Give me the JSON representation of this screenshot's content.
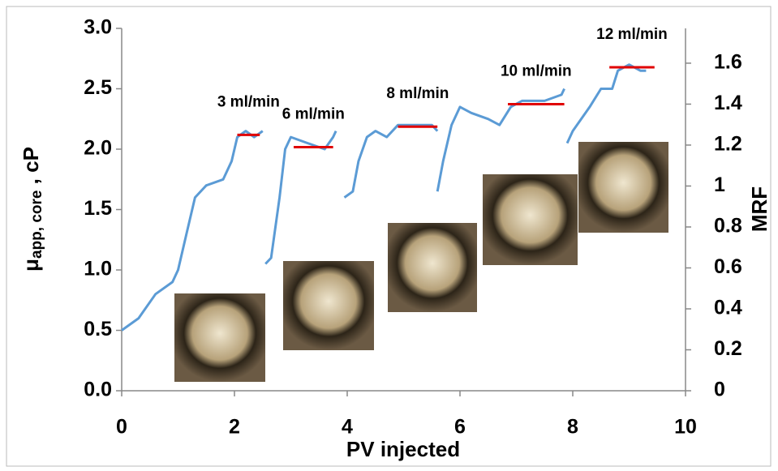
{
  "chart_data": {
    "type": "line",
    "x_label": "PV injected",
    "y_label": "μ",
    "y_label_sub": "app, core",
    "y_label_suffix": " , cP",
    "y2_label": "MRF",
    "xlim": [
      0,
      10
    ],
    "xticks": [
      0,
      2,
      4,
      6,
      8,
      10
    ],
    "ylim": [
      0,
      3
    ],
    "yticks": [
      {
        "value": 0,
        "label": "0.0"
      },
      0.5,
      {
        "value": 1,
        "label": "1.0"
      },
      1.5,
      {
        "value": 2,
        "label": "2.0"
      },
      2.5,
      {
        "value": 3,
        "label": "3.0"
      }
    ],
    "y2lim": [
      0,
      1.77
    ],
    "y2ticks": [
      0,
      0.2,
      0.4,
      0.6,
      0.8,
      1,
      1.2,
      1.4,
      1.6
    ],
    "series": [
      {
        "color": "#5b9bd5",
        "x": [
          0,
          0.3,
          0.6,
          0.9,
          1.0,
          1.15,
          1.3,
          1.5,
          1.8,
          1.95,
          2.05,
          2.2,
          2.35,
          2.5,
          2.52,
          2.55,
          2.65,
          2.8,
          2.9,
          3.0,
          3.3,
          3.6,
          3.75,
          3.8,
          3.9,
          3.95,
          4.1,
          4.2,
          4.35,
          4.5,
          4.7,
          4.9,
          5.2,
          5.5,
          5.6,
          5.6,
          5.6,
          5.7,
          5.85,
          6.0,
          6.2,
          6.5,
          6.7,
          6.9,
          7.1,
          7.5,
          7.8,
          7.85,
          7.88,
          7.9,
          8.0,
          8.3,
          8.5,
          8.7,
          8.8,
          9.0,
          9.2,
          9.3
        ],
        "values": [
          0.5,
          0.6,
          0.8,
          0.9,
          1.0,
          1.3,
          1.6,
          1.7,
          1.75,
          1.9,
          2.1,
          2.15,
          2.1,
          2.15,
          null,
          1.05,
          1.1,
          1.6,
          2.0,
          2.1,
          2.05,
          2.0,
          2.1,
          2.15,
          null,
          1.6,
          1.65,
          1.9,
          2.1,
          2.15,
          2.1,
          2.2,
          2.2,
          2.2,
          2.15,
          null,
          1.65,
          1.9,
          2.2,
          2.35,
          2.3,
          2.25,
          2.2,
          2.35,
          2.4,
          2.4,
          2.45,
          2.5,
          null,
          2.05,
          2.15,
          2.35,
          2.5,
          2.5,
          2.65,
          2.7,
          2.65,
          2.65
        ]
      }
    ],
    "mrf_levels": {
      "color": "#e00000",
      "axis": "y2",
      "labels": [
        "3 ml/min",
        "6 ml/min",
        "8 ml/min",
        "10 ml/min",
        "12 ml/min"
      ],
      "x_start": [
        2.05,
        3.05,
        4.9,
        6.85,
        8.65
      ],
      "x_end": [
        2.45,
        3.75,
        5.6,
        7.85,
        9.45
      ],
      "values": [
        1.25,
        1.19,
        1.29,
        1.4,
        1.58
      ]
    }
  }
}
